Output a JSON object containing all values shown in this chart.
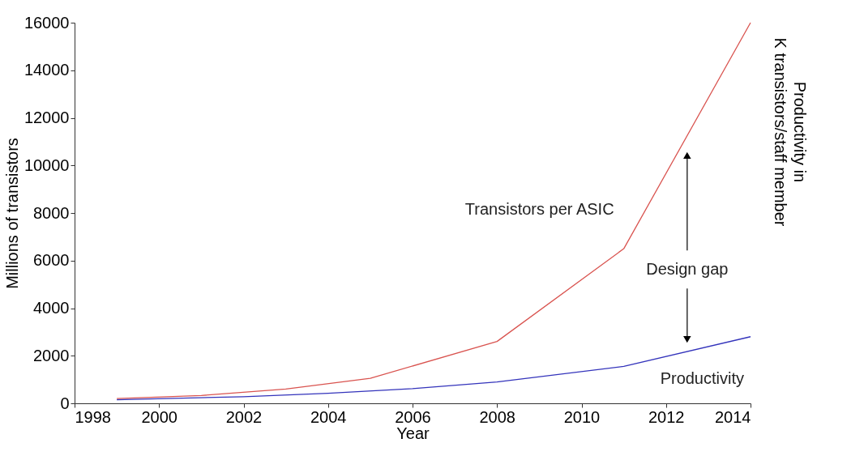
{
  "chart_data": {
    "type": "line",
    "xlabel": "Year",
    "ylabel": "Millions of transistors",
    "y2label": "Productivity in\nK transistors/staff member",
    "xlim": [
      1998,
      2014
    ],
    "xticks": [
      1998,
      2000,
      2002,
      2004,
      2006,
      2008,
      2010,
      2012,
      2014
    ],
    "ylim": [
      0,
      16000
    ],
    "yticks": [
      0,
      2000,
      4000,
      6000,
      8000,
      10000,
      12000,
      14000,
      16000
    ],
    "grid": false,
    "series": [
      {
        "name": "Transistors per ASIC",
        "color": "#d9534f",
        "x": [
          1999,
          2001,
          2003,
          2005,
          2008,
          2011,
          2014
        ],
        "values": [
          200,
          330,
          600,
          1050,
          2600,
          6500,
          16000
        ]
      },
      {
        "name": "Productivity",
        "color": "#3333bb",
        "x": [
          1999,
          2002,
          2004,
          2006,
          2008,
          2011,
          2014
        ],
        "values": [
          150,
          280,
          420,
          620,
          900,
          1550,
          2800
        ]
      }
    ],
    "annotations": [
      "Design gap"
    ]
  }
}
